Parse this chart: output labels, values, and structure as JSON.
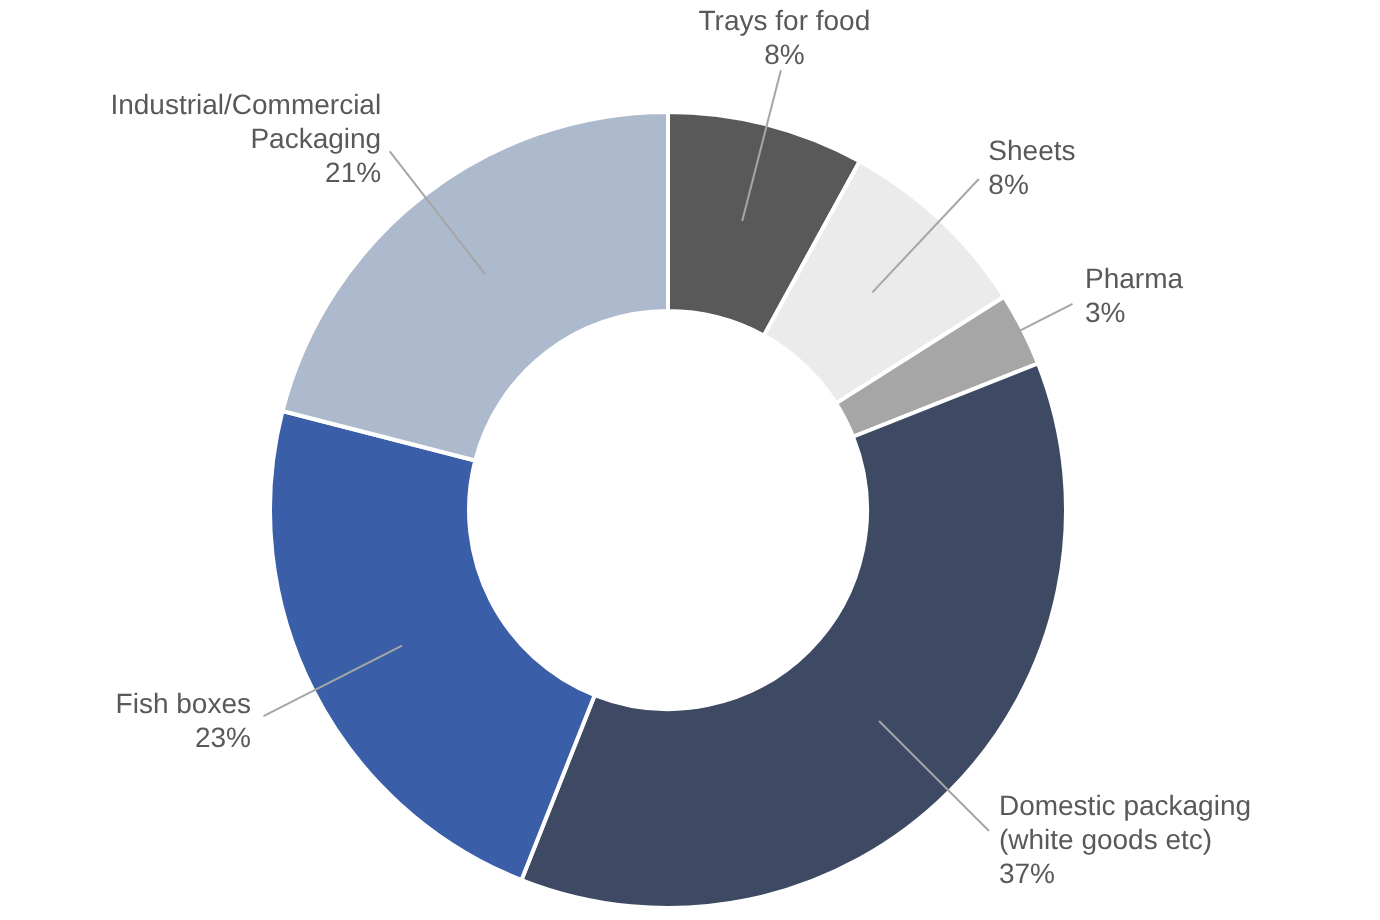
{
  "chart_data": {
    "type": "donut",
    "categories": [
      "Trays for food",
      "Sheets",
      "Pharma",
      "Domestic packaging (white goods etc)",
      "Fish boxes",
      "Industrial/Commercial Packaging"
    ],
    "values": [
      8,
      8,
      3,
      37,
      23,
      21
    ],
    "value_labels": [
      "8%",
      "8%",
      "3%",
      "37%",
      "23%",
      "21%"
    ],
    "colors": [
      "#595959",
      "#ebebeb",
      "#a6a6a6",
      "#3e4a64",
      "#3a5fa8",
      "#adb9cc"
    ],
    "legend": false
  }
}
